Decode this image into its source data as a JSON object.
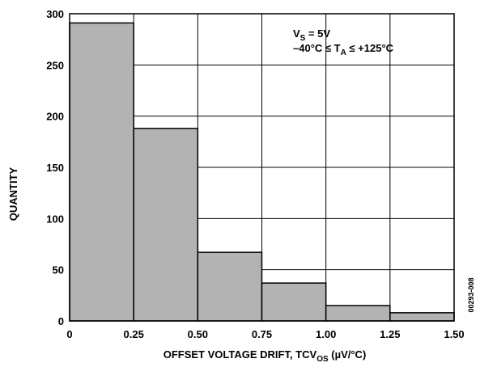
{
  "chart_data": {
    "type": "bar",
    "title": "",
    "xlabel": {
      "main": "OFFSET VOLTAGE DRIFT, TCV",
      "sub": "OS",
      "unit": " (µV/°C)"
    },
    "ylabel": "QUANTITY",
    "xlim": [
      0,
      1.5
    ],
    "ylim": [
      0,
      300
    ],
    "x_tick_labels": [
      "0",
      "0.25",
      "0.50",
      "0.75",
      "1.00",
      "1.25",
      "1.50"
    ],
    "x_tick_values": [
      0,
      0.25,
      0.5,
      0.75,
      1.0,
      1.25,
      1.5
    ],
    "y_tick_labels": [
      "0",
      "50",
      "100",
      "150",
      "200",
      "250",
      "300"
    ],
    "y_tick_values": [
      0,
      50,
      100,
      150,
      200,
      250,
      300
    ],
    "bins": [
      {
        "from": 0,
        "to": 0.25,
        "value": 291
      },
      {
        "from": 0.25,
        "to": 0.5,
        "value": 188
      },
      {
        "from": 0.5,
        "to": 0.75,
        "value": 67
      },
      {
        "from": 0.75,
        "to": 1.0,
        "value": 37
      },
      {
        "from": 1.0,
        "to": 1.25,
        "value": 15
      },
      {
        "from": 1.25,
        "to": 1.5,
        "value": 8
      }
    ],
    "grid": true,
    "bar_color": "#b3b3b3",
    "annotation": {
      "line1": {
        "main": "V",
        "sub": "S",
        "rest": " = 5V"
      },
      "line2": {
        "main": "–40°C ≤ T",
        "sub": "A",
        "rest": " ≤ +125°C"
      }
    },
    "figure_id": "00293-008"
  }
}
